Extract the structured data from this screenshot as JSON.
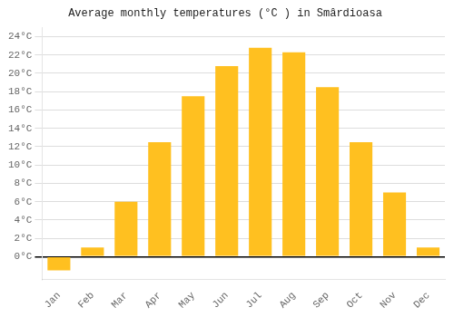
{
  "chart_data": {
    "type": "bar",
    "title": "Average monthly temperatures (°C ) in Smârdioasa",
    "categories": [
      "Jan",
      "Feb",
      "Mar",
      "Apr",
      "May",
      "Jun",
      "Jul",
      "Aug",
      "Sep",
      "Oct",
      "Nov",
      "Dec"
    ],
    "values": [
      -1.5,
      1.0,
      6.0,
      12.5,
      17.5,
      20.8,
      22.8,
      22.3,
      18.5,
      12.5,
      7.0,
      1.0
    ],
    "color": "#FFC020",
    "ylim": [
      -2.5,
      25.0
    ],
    "yticks": [
      {
        "value": 0,
        "label": "0°C"
      },
      {
        "value": 2,
        "label": "2°C"
      },
      {
        "value": 4,
        "label": "4°C"
      },
      {
        "value": 6,
        "label": "6°C"
      },
      {
        "value": 8,
        "label": "8°C"
      },
      {
        "value": 10,
        "label": "10°C"
      },
      {
        "value": 12,
        "label": "12°C"
      },
      {
        "value": 14,
        "label": "14°C"
      },
      {
        "value": 16,
        "label": "16°C"
      },
      {
        "value": 18,
        "label": "18°C"
      },
      {
        "value": 20,
        "label": "20°C"
      },
      {
        "value": 22,
        "label": "22°C"
      },
      {
        "value": 24,
        "label": "24°C"
      }
    ],
    "grid": true
  }
}
